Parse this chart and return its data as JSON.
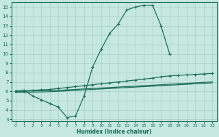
{
  "xlabel": "Humidex (Indice chaleur)",
  "xlim": [
    -0.5,
    23.5
  ],
  "ylim": [
    2.8,
    15.5
  ],
  "xticks": [
    0,
    1,
    2,
    3,
    4,
    5,
    6,
    7,
    8,
    9,
    10,
    11,
    12,
    13,
    14,
    15,
    16,
    17,
    18,
    19,
    20,
    21,
    22,
    23
  ],
  "yticks": [
    3,
    4,
    5,
    6,
    7,
    8,
    9,
    10,
    11,
    12,
    13,
    14,
    15
  ],
  "bg_color": "#c5e8e0",
  "line_color": "#1a6b5a",
  "grid_color": "#a8cfc8",
  "line1_x": [
    0,
    1,
    2,
    3,
    4,
    5,
    6,
    7,
    8,
    9,
    10,
    11,
    12,
    13,
    14,
    15,
    16,
    17,
    18
  ],
  "line1_y": [
    6.0,
    6.1,
    5.5,
    5.1,
    4.7,
    4.3,
    3.2,
    3.35,
    5.5,
    8.6,
    10.5,
    12.2,
    13.2,
    14.7,
    15.0,
    15.2,
    15.2,
    13.0,
    10.0
  ],
  "line2_x": [
    0,
    1,
    2,
    3,
    4,
    5,
    6,
    7,
    8,
    9,
    10,
    11,
    12,
    13,
    14,
    15,
    16,
    17,
    18,
    19,
    20,
    21,
    22,
    23
  ],
  "line2_y": [
    6.0,
    6.05,
    6.1,
    6.15,
    6.2,
    6.3,
    6.4,
    6.5,
    6.6,
    6.7,
    6.8,
    6.9,
    7.0,
    7.1,
    7.2,
    7.3,
    7.4,
    7.55,
    7.65,
    7.7,
    7.75,
    7.8,
    7.85,
    7.9
  ],
  "line3_x": [
    0,
    1,
    2,
    3,
    4,
    5,
    6,
    7,
    8,
    9,
    10,
    11,
    12,
    13,
    14,
    15,
    16,
    17,
    18,
    19,
    20,
    21,
    22,
    23
  ],
  "line3_y": [
    6.0,
    6.02,
    6.04,
    6.06,
    6.08,
    6.1,
    6.15,
    6.2,
    6.25,
    6.3,
    6.35,
    6.4,
    6.45,
    6.5,
    6.55,
    6.6,
    6.65,
    6.7,
    6.75,
    6.8,
    6.85,
    6.9,
    6.95,
    7.0
  ],
  "line4_x": [
    0,
    1,
    2,
    3,
    4,
    5,
    6,
    7,
    8,
    9,
    10,
    11,
    12,
    13,
    14,
    15,
    16,
    17,
    18,
    19,
    20,
    21,
    22,
    23
  ],
  "line4_y": [
    5.85,
    5.88,
    5.9,
    5.93,
    5.96,
    6.0,
    6.05,
    6.1,
    6.15,
    6.2,
    6.25,
    6.3,
    6.35,
    6.4,
    6.45,
    6.5,
    6.55,
    6.6,
    6.65,
    6.7,
    6.75,
    6.8,
    6.85,
    6.9
  ]
}
